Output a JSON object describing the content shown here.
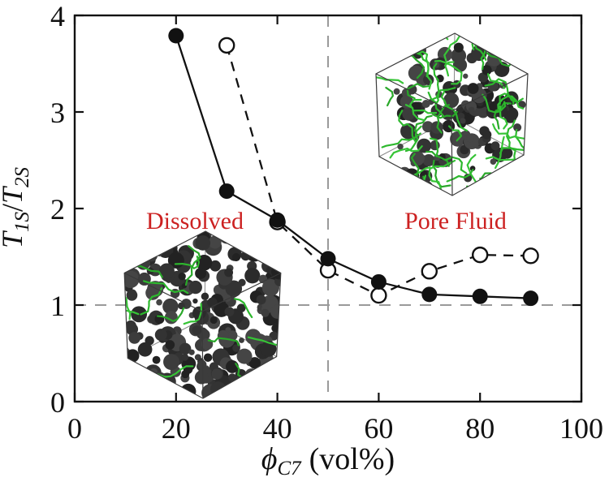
{
  "chart_data": {
    "type": "line",
    "title": "",
    "xlabel": "phi_C7 (vol%)",
    "ylabel": "T_1S / T_2S",
    "xlim": [
      0,
      100
    ],
    "ylim": [
      0,
      4
    ],
    "x_ticks": [
      "0",
      "20",
      "40",
      "60",
      "80",
      "100"
    ],
    "x_tick_values": [
      0,
      20,
      40,
      60,
      80,
      100
    ],
    "y_ticks": [
      "0",
      "1",
      "2",
      "3",
      "4"
    ],
    "y_tick_values": [
      0,
      1,
      2,
      3,
      4
    ],
    "grid": "off",
    "legend": "none",
    "reference_lines": [
      {
        "orientation": "vertical",
        "x": 50,
        "style": "dashed",
        "color": "#9a9a9a"
      },
      {
        "orientation": "horizontal",
        "y": 1.0,
        "style": "dashed",
        "color": "#9a9a9a"
      }
    ],
    "series": [
      {
        "name": "solid-filled",
        "marker": "filled-circle",
        "line": "solid",
        "color": "#111111",
        "x": [
          20,
          30,
          40,
          50,
          60,
          70,
          80,
          90
        ],
        "y": [
          3.79,
          2.18,
          1.88,
          1.48,
          1.24,
          1.11,
          1.09,
          1.07
        ]
      },
      {
        "name": "dashed-open",
        "marker": "open-circle",
        "line": "dashed",
        "color": "#111111",
        "x": [
          30,
          40,
          50,
          60,
          70,
          80,
          90
        ],
        "y": [
          3.69,
          1.86,
          1.36,
          1.1,
          1.35,
          1.52,
          1.51
        ]
      }
    ],
    "annotations": [
      {
        "text": "Dissolved",
        "x": 23.7,
        "y": 1.87,
        "color": "#cc2121"
      },
      {
        "text": "Pore Fluid",
        "x": 75.2,
        "y": 1.87,
        "color": "#cc2121"
      }
    ]
  },
  "axis_labels": {
    "y_t1": "T",
    "y_sub1": "1S",
    "y_slash": "/",
    "y_t2": "T",
    "y_sub2": "2S",
    "x_phi": "ϕ",
    "x_sub": "C7",
    "x_rest": "(vol%)"
  },
  "insets": [
    {
      "name": "dissolved-structure",
      "style": "dense",
      "description": "simulation cube: dense dark rock matrix with sparse green C7 chains",
      "green_chains": 15
    },
    {
      "name": "pore-fluid-structure",
      "style": "porous",
      "description": "simulation cube: dark rock clusters with abundant green C7 chains",
      "green_chains": 58
    }
  ],
  "colors": {
    "annotation_red": "#cc2121",
    "reference_gray": "#9a9a9a",
    "series_black": "#111111",
    "molecule_green": "#2db82d",
    "rock_dark": "#2e2e2e"
  }
}
